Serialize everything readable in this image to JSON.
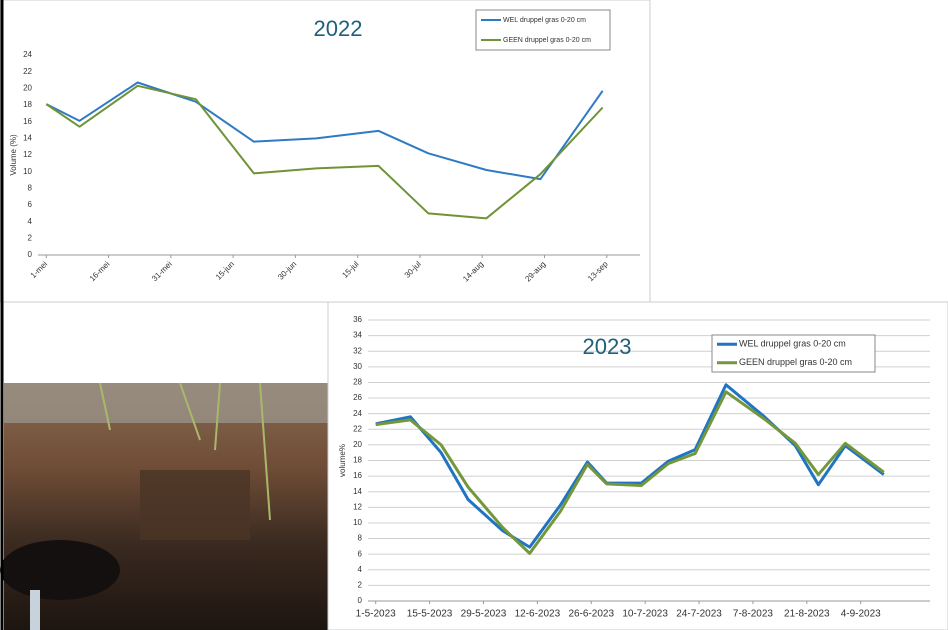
{
  "chart_data": [
    {
      "type": "line",
      "title": "2022",
      "y_label": "Volume (%)",
      "x": [
        0,
        8,
        22,
        36,
        50,
        65,
        80,
        92,
        106,
        119,
        134
      ],
      "xlim": [
        -2,
        143
      ],
      "xticks": [
        {
          "value": 0,
          "label": "1-mei"
        },
        {
          "value": 15,
          "label": "16-mei"
        },
        {
          "value": 30,
          "label": "31-mei"
        },
        {
          "value": 45,
          "label": "15-jun"
        },
        {
          "value": 60,
          "label": "30-jun"
        },
        {
          "value": 75,
          "label": "15-jul"
        },
        {
          "value": 90,
          "label": "30-jul"
        },
        {
          "value": 105,
          "label": "14-aug"
        },
        {
          "value": 120,
          "label": "29-aug"
        },
        {
          "value": 135,
          "label": "13-sep"
        }
      ],
      "ylim": [
        0,
        24
      ],
      "yticks": [
        0,
        2,
        4,
        6,
        8,
        10,
        12,
        14,
        16,
        18,
        20,
        22,
        24
      ],
      "grid": false,
      "legend": "upper right",
      "series": [
        {
          "name": "WEL druppel gras 0-20 cm",
          "color": "#2e7bc4",
          "values": [
            18.1,
            16.1,
            20.7,
            18.4,
            13.6,
            14.0,
            14.9,
            12.2,
            10.2,
            9.1,
            19.7
          ]
        },
        {
          "name": "GEEN druppel gras 0-20 cm",
          "color": "#6f9336",
          "values": [
            18.1,
            15.4,
            20.3,
            18.7,
            9.8,
            10.4,
            10.7,
            5.0,
            4.4,
            9.7,
            17.7
          ]
        }
      ]
    },
    {
      "type": "line",
      "title": "2023",
      "y_label": "volume%",
      "x": [
        0,
        9,
        17,
        24,
        33,
        40,
        48,
        55,
        60,
        69,
        76,
        83,
        91,
        101,
        109,
        115,
        122,
        132
      ],
      "xlim": [
        -2,
        144
      ],
      "xticks": [
        {
          "value": 0,
          "label": "1-5-2023"
        },
        {
          "value": 14,
          "label": "15-5-2023"
        },
        {
          "value": 28,
          "label": "29-5-2023"
        },
        {
          "value": 42,
          "label": "12-6-2023"
        },
        {
          "value": 56,
          "label": "26-6-2023"
        },
        {
          "value": 70,
          "label": "10-7-2023"
        },
        {
          "value": 84,
          "label": "24-7-2023"
        },
        {
          "value": 98,
          "label": "7-8-2023"
        },
        {
          "value": 112,
          "label": "21-8-2023"
        },
        {
          "value": 126,
          "label": "4-9-2023"
        }
      ],
      "ylim": [
        0,
        36
      ],
      "yticks": [
        0,
        2,
        4,
        6,
        8,
        10,
        12,
        14,
        16,
        18,
        20,
        22,
        24,
        26,
        28,
        30,
        32,
        34,
        36
      ],
      "grid": true,
      "legend": "upper right",
      "series": [
        {
          "name": "WEL druppel gras 0-20 cm",
          "color": "#1f74c4",
          "values": [
            22.7,
            23.6,
            19.0,
            13.0,
            9.0,
            6.9,
            12.3,
            17.8,
            15.1,
            15.1,
            17.9,
            19.4,
            27.7,
            23.6,
            19.9,
            14.9,
            19.9,
            16.2
          ]
        },
        {
          "name": "GEEN druppel gras 0-20 cm",
          "color": "#73973a",
          "values": [
            22.6,
            23.2,
            20.0,
            14.6,
            9.4,
            6.1,
            11.5,
            17.5,
            15.0,
            14.8,
            17.6,
            18.9,
            26.8,
            23.3,
            20.2,
            16.2,
            20.2,
            16.5
          ]
        }
      ]
    }
  ]
}
